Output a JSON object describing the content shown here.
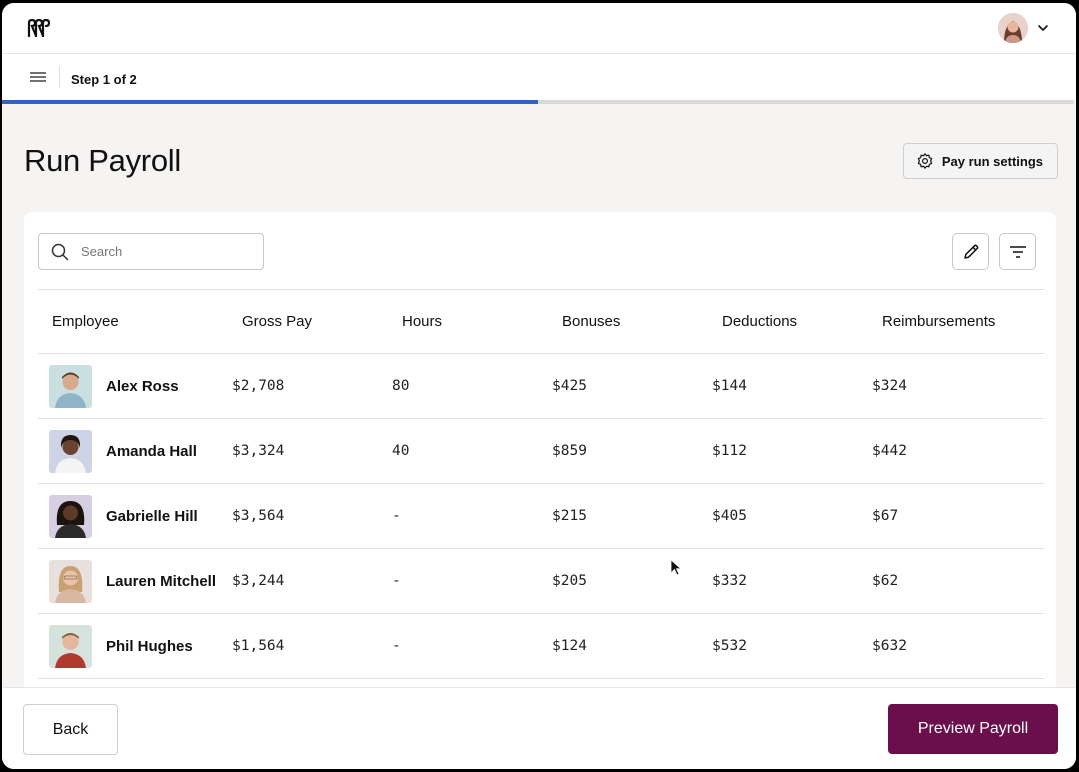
{
  "step": {
    "label": "Step 1 of 2",
    "progress_fraction": 0.5
  },
  "page": {
    "title": "Run Payroll"
  },
  "toolbar": {
    "settings_label": "Pay run settings",
    "search_placeholder": "Search"
  },
  "table": {
    "columns": [
      "Employee",
      "Gross Pay",
      "Hours",
      "Bonuses",
      "Deductions",
      "Reimbursements"
    ],
    "rows": [
      {
        "name": "Alex Ross",
        "gross": "$2,708",
        "hours": "80",
        "bonuses": "$425",
        "deductions": "$144",
        "reimbursements": "$324"
      },
      {
        "name": "Amanda Hall",
        "gross": "$3,324",
        "hours": "40",
        "bonuses": "$859",
        "deductions": "$112",
        "reimbursements": "$442"
      },
      {
        "name": "Gabrielle Hill",
        "gross": "$3,564",
        "hours": "-",
        "bonuses": "$215",
        "deductions": "$405",
        "reimbursements": "$67"
      },
      {
        "name": "Lauren Mitchell",
        "gross": "$3,244",
        "hours": "-",
        "bonuses": "$205",
        "deductions": "$332",
        "reimbursements": "$62"
      },
      {
        "name": "Phil Hughes",
        "gross": "$1,564",
        "hours": "-",
        "bonuses": "$124",
        "deductions": "$532",
        "reimbursements": "$632"
      }
    ]
  },
  "footer": {
    "back_label": "Back",
    "preview_label": "Preview Payroll"
  },
  "colors": {
    "accent": "#2e64c6",
    "primary_button": "#6b0f4c"
  },
  "icons": [
    "logo-icon",
    "avatar",
    "chevron-down-icon",
    "menu-icon",
    "gear-icon",
    "search-icon",
    "pencil-icon",
    "filter-icon"
  ]
}
